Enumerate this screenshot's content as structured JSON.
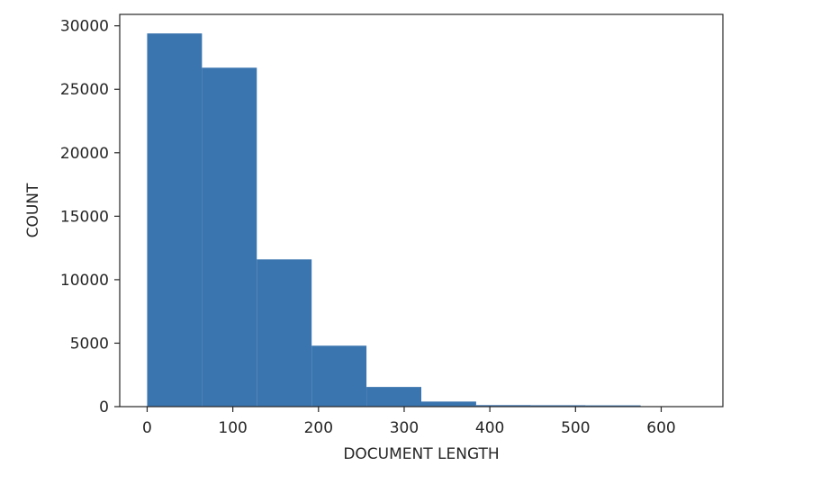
{
  "chart_data": {
    "type": "bar",
    "title": "",
    "xlabel": "DOCUMENT LENGTH",
    "ylabel": "COUNT",
    "bin_edges": [
      0,
      64,
      128,
      192,
      256,
      320,
      384,
      448,
      512,
      576,
      640
    ],
    "values": [
      29400,
      26700,
      11600,
      4800,
      1550,
      400,
      120,
      110,
      100,
      25
    ],
    "xlim": [
      -32,
      672
    ],
    "ylim": [
      0,
      30900
    ],
    "xticks": [
      0,
      100,
      200,
      300,
      400,
      500,
      600
    ],
    "yticks": [
      0,
      5000,
      10000,
      15000,
      20000,
      25000,
      30000
    ],
    "bar_color": "#3a75af",
    "grid": false
  }
}
